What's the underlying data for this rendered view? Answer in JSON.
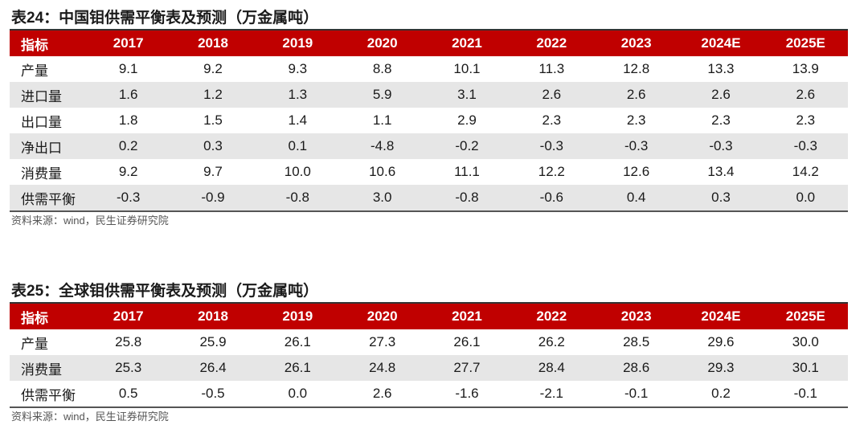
{
  "table1": {
    "title": "表24：中国钼供需平衡表及预测（万金属吨）",
    "headers": [
      "指标",
      "2017",
      "2018",
      "2019",
      "2020",
      "2021",
      "2022",
      "2023",
      "2024E",
      "2025E"
    ],
    "rows": [
      [
        "产量",
        "9.1",
        "9.2",
        "9.3",
        "8.8",
        "10.1",
        "11.3",
        "12.8",
        "13.3",
        "13.9"
      ],
      [
        "进口量",
        "1.6",
        "1.2",
        "1.3",
        "5.9",
        "3.1",
        "2.6",
        "2.6",
        "2.6",
        "2.6"
      ],
      [
        "出口量",
        "1.8",
        "1.5",
        "1.4",
        "1.1",
        "2.9",
        "2.3",
        "2.3",
        "2.3",
        "2.3"
      ],
      [
        "净出口",
        "0.2",
        "0.3",
        "0.1",
        "-4.8",
        "-0.2",
        "-0.3",
        "-0.3",
        "-0.3",
        "-0.3"
      ],
      [
        "消费量",
        "9.2",
        "9.7",
        "10.0",
        "10.6",
        "11.1",
        "12.2",
        "12.6",
        "13.4",
        "14.2"
      ],
      [
        "供需平衡",
        "-0.3",
        "-0.9",
        "-0.8",
        "3.0",
        "-0.8",
        "-0.6",
        "0.4",
        "0.3",
        "0.0"
      ]
    ],
    "source": "资料来源：wind，民生证券研究院"
  },
  "table2": {
    "title": "表25：全球钼供需平衡表及预测（万金属吨）",
    "headers": [
      "指标",
      "2017",
      "2018",
      "2019",
      "2020",
      "2021",
      "2022",
      "2023",
      "2024E",
      "2025E"
    ],
    "rows": [
      [
        "产量",
        "25.8",
        "25.9",
        "26.1",
        "27.3",
        "26.1",
        "26.2",
        "28.5",
        "29.6",
        "30.0"
      ],
      [
        "消费量",
        "25.3",
        "26.4",
        "26.1",
        "24.8",
        "27.7",
        "28.4",
        "28.6",
        "29.3",
        "30.1"
      ],
      [
        "供需平衡",
        "0.5",
        "-0.5",
        "0.0",
        "2.6",
        "-1.6",
        "-2.1",
        "-0.1",
        "0.2",
        "-0.1"
      ]
    ],
    "source": "资料来源：wind，民生证券研究院"
  },
  "colors": {
    "header_bg": "#c00000",
    "header_text": "#ffffff",
    "alt_row_bg": "#e6e6e6"
  }
}
